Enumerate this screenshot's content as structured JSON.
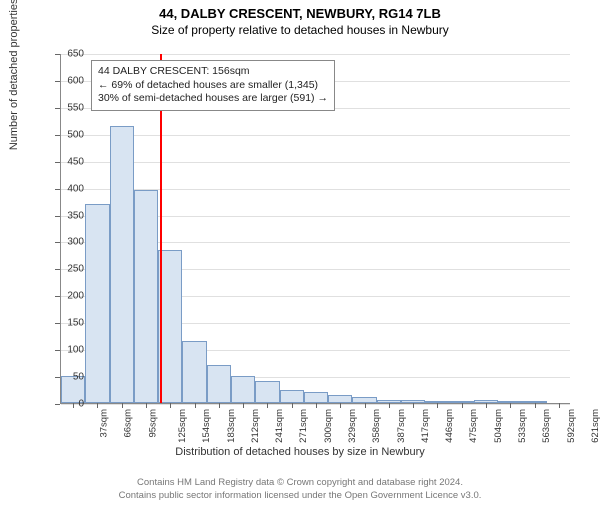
{
  "header": {
    "title": "44, DALBY CRESCENT, NEWBURY, RG14 7LB",
    "subtitle": "Size of property relative to detached houses in Newbury"
  },
  "chart": {
    "type": "histogram",
    "yaxis": {
      "label": "Number of detached properties",
      "min": 0,
      "max": 650,
      "ticks": [
        0,
        50,
        100,
        150,
        200,
        250,
        300,
        350,
        400,
        450,
        500,
        550,
        600,
        650
      ],
      "grid_color": "#e0e0e0",
      "tick_fontsize": 10
    },
    "xaxis": {
      "label": "Distribution of detached houses by size in Newbury",
      "categories": [
        "37sqm",
        "66sqm",
        "95sqm",
        "125sqm",
        "154sqm",
        "183sqm",
        "212sqm",
        "241sqm",
        "271sqm",
        "300sqm",
        "329sqm",
        "358sqm",
        "387sqm",
        "417sqm",
        "446sqm",
        "475sqm",
        "504sqm",
        "533sqm",
        "563sqm",
        "592sqm",
        "621sqm"
      ],
      "tick_fontsize": 9.5
    },
    "bars": {
      "values": [
        50,
        370,
        515,
        395,
        285,
        115,
        70,
        50,
        40,
        25,
        20,
        15,
        12,
        5,
        5,
        3,
        3,
        5,
        2,
        1,
        0
      ],
      "fill_color": "#d8e4f2",
      "border_color": "#7a9cc6",
      "bar_width_ratio": 1.0
    },
    "marker": {
      "position_index": 4.07,
      "color": "#ff0000",
      "width": 2
    },
    "callout": {
      "line1": "44 DALBY CRESCENT: 156sqm",
      "line2": "← 69% of detached houses are smaller (1,345)",
      "line3": "30% of semi-detached houses are larger (591) →",
      "border_color": "#888888",
      "background_color": "#ffffff",
      "fontsize": 10.5
    },
    "plot_bg": "#ffffff"
  },
  "footer": {
    "line1": "Contains HM Land Registry data © Crown copyright and database right 2024.",
    "line2": "Contains public sector information licensed under the Open Government Licence v3.0."
  }
}
